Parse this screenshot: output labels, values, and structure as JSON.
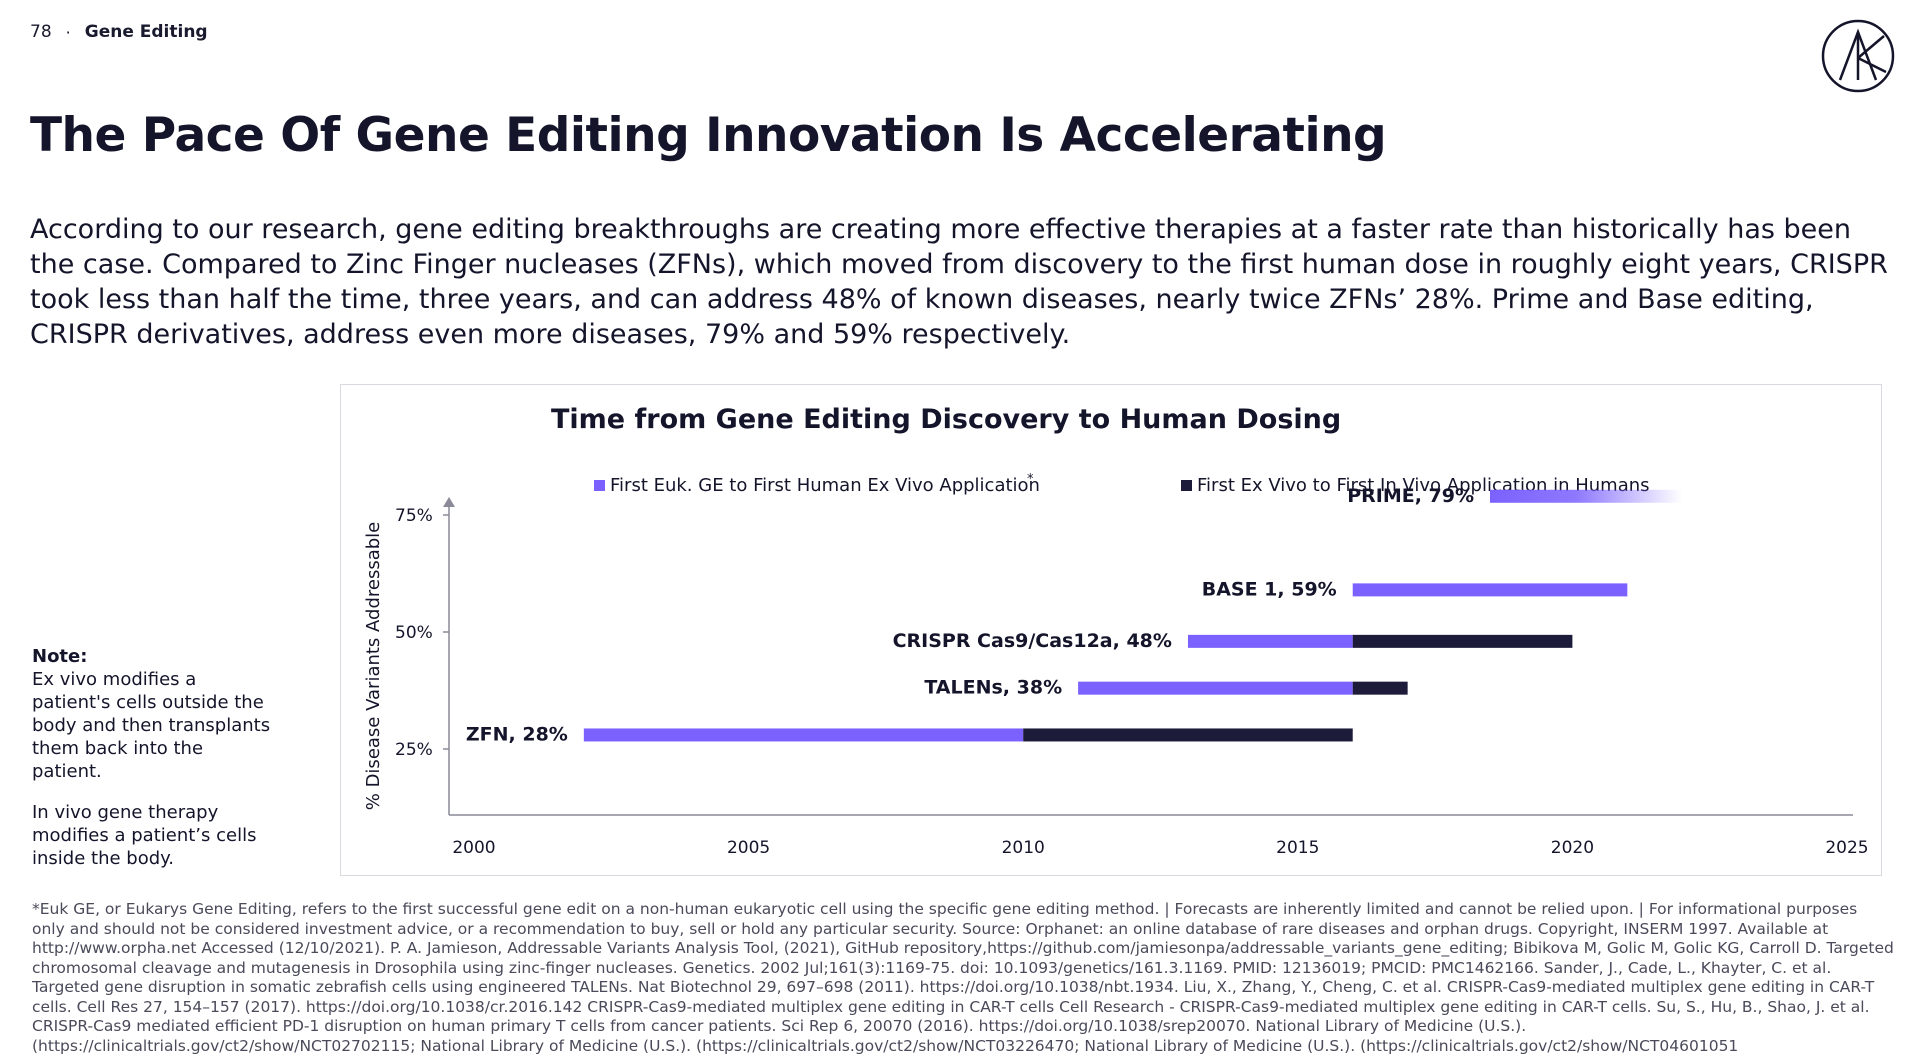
{
  "header": {
    "page_number": "78",
    "separator": "·",
    "section": "Gene Editing"
  },
  "title": "The Pace Of Gene Editing Innovation Is Accelerating",
  "intro": "According to our research, gene editing breakthroughs are creating more effective therapies at a faster rate than historically has been the case. Compared to Zinc Finger nucleases (ZFNs), which moved from discovery to the first human dose in roughly eight years, CRISPR took less than half the time, three years, and can address 48% of known diseases, nearly twice ZFNs’ 28%. Prime and Base editing, CRISPR derivatives, address even more diseases, 79% and 59% respectively.",
  "note": {
    "heading": "Note:",
    "para1": "Ex vivo modifies a patient's cells outside the body and then transplants them back into the patient.",
    "para2": "In vivo gene therapy modifies a patient’s cells inside the body."
  },
  "colors": {
    "purple": "#7b61ff",
    "navy": "#1c1c3a",
    "text": "#14142b"
  },
  "chart_data": {
    "type": "bar",
    "title": "Time from Gene Editing Discovery to Human Dosing",
    "ylabel": "% Disease Variants Addressable",
    "xlabel": "",
    "xlim": [
      2000,
      2025
    ],
    "x_ticks": [
      "2000",
      "2005",
      "2010",
      "2015",
      "2020",
      "2025"
    ],
    "y_ticks": [
      "25%",
      "50%",
      "75%"
    ],
    "legend_position": "top",
    "series": [
      {
        "name": "First Euk. GE to First Human Ex Vivo Application",
        "marker": "*",
        "color": "#7b61ff"
      },
      {
        "name": "First Ex Vivo to First In Vivo Application in Humans",
        "color": "#1c1c3a"
      }
    ],
    "bars": [
      {
        "label": "ZFN, 28%",
        "y": 28,
        "euk_start": 2002,
        "exvivo": 2010,
        "invivo": 2016
      },
      {
        "label": "TALENs, 38%",
        "y": 38,
        "euk_start": 2011,
        "exvivo": 2016,
        "invivo": 2017
      },
      {
        "label": "CRISPR Cas9/Cas12a, 48%",
        "y": 48,
        "euk_start": 2013,
        "exvivo": 2016,
        "invivo": 2020
      },
      {
        "label": "BASE 1, 59%",
        "y": 59,
        "euk_start": 2016,
        "exvivo": 2021,
        "invivo": null
      },
      {
        "label": "PRIME, 79%",
        "y": 79,
        "euk_start": 2018.5,
        "exvivo": 2022,
        "invivo": null,
        "projected": true
      }
    ]
  },
  "footnote": "*Euk GE, or Eukarys Gene Editing, refers to the first successful gene edit on a non-human eukaryotic cell using the specific gene editing method. | Forecasts are inherently limited and cannot be relied upon. | For informational purposes only and should not be considered investment advice, or a recommendation to buy, sell or hold any particular security. Source: Orphanet: an online database of rare diseases and orphan drugs. Copyright, INSERM 1997. Available at http://www.orpha.net Accessed (12/10/2021). P. A. Jamieson, Addressable Variants Analysis Tool, (2021), GitHub repository,https://github.com/jamiesonpa/addressable_variants_gene_editing; Bibikova M, Golic M, Golic KG, Carroll D. Targeted chromosomal cleavage and mutagenesis in Drosophila using zinc-finger nucleases. Genetics. 2002 Jul;161(3):1169-75. doi: 10.1093/genetics/161.3.1169. PMID: 12136019; PMCID: PMC1462166. Sander, J., Cade, L., Khayter, C. et al. Targeted gene disruption in somatic zebrafish cells using engineered TALENs. Nat Biotechnol 29, 697–698 (2011). https://doi.org/10.1038/nbt.1934. Liu, X., Zhang, Y., Cheng, C. et al. CRISPR-Cas9-mediated multiplex gene editing in CAR-T cells. Cell Res 27, 154–157 (2017). https://doi.org/10.1038/cr.2016.142 CRISPR-Cas9-mediated multiplex gene editing in CAR-T cells Cell Research - CRISPR-Cas9-mediated multiplex gene editing in CAR-T cells. Su, S., Hu, B., Shao, J. et al. CRISPR-Cas9 mediated efficient PD-1 disruption on human primary T cells from cancer patients. Sci Rep 6, 20070 (2016). https://doi.org/10.1038/srep20070. National Library of Medicine (U.S.). (https://clinicaltrials.gov/ct2/show/NCT02702115; National Library of Medicine (U.S.). (https://clinicaltrials.gov/ct2/show/NCT03226470; National Library of Medicine (U.S.). (https://clinicaltrials.gov/ct2/show/NCT04601051"
}
